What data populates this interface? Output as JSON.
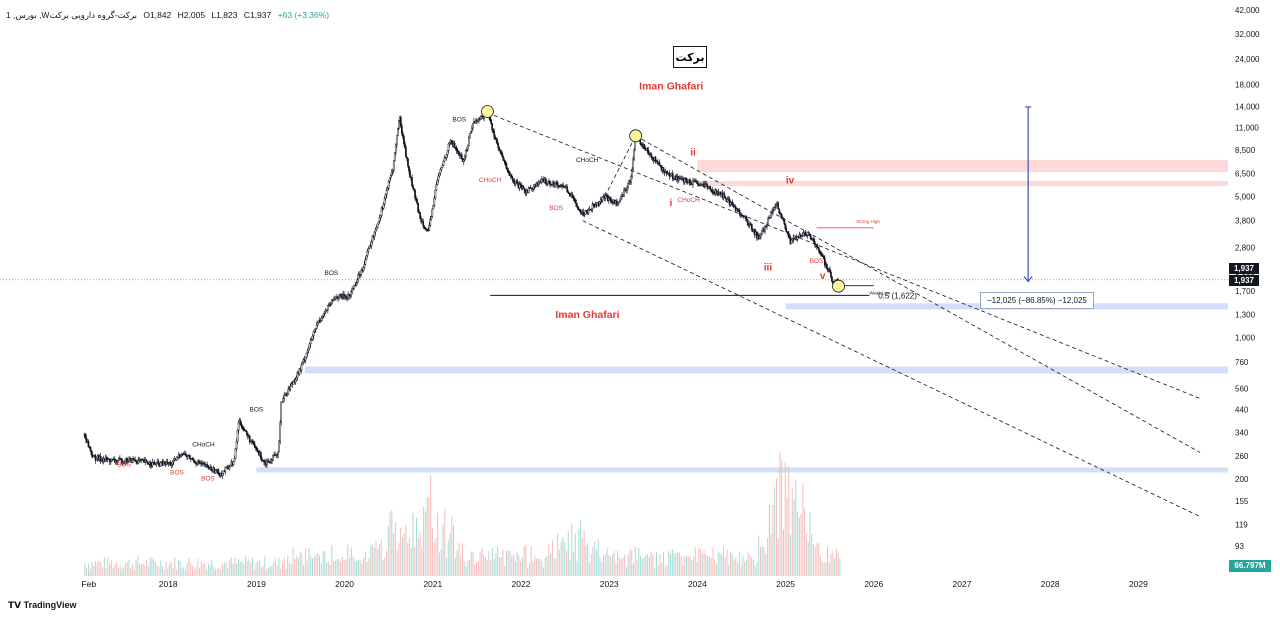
{
  "header": {
    "symbol": "1 ,بورس ,Wبرکت-گروه دارویی برکت",
    "open": "O1,842",
    "high": "H2,005",
    "low": "L1,823",
    "close": "C1,937",
    "change": "+63 (+3.36%)"
  },
  "title": "برکت",
  "watermark": "Iman Ghafari",
  "price_tag_top": "1,937",
  "price_tag_bottom": "1,937",
  "volume_tag": "66.797M",
  "fib_label": "0.5 (1,622)",
  "measure_label": "−12,025 (−86.85%) −12,025",
  "strong_high_label": "Strong High",
  "weak_low_label": "Weak Low",
  "footer_logo": "TradingView",
  "colors": {
    "up": "#26a69a",
    "down": "#ef5350",
    "candle": "#131722",
    "zone_blue": "#c9d9f7",
    "zone_red": "#fbd4d4",
    "bos_red": "#e53935"
  },
  "chart_data": {
    "type": "candlestick",
    "scale": "log",
    "y_ticks": [
      42000,
      32000,
      24000,
      18000,
      14000,
      11000,
      8500,
      6500,
      5000,
      3800,
      2800,
      2000,
      1700,
      1300,
      1000,
      760,
      560,
      440,
      340,
      260,
      200,
      155,
      119,
      93
    ],
    "x_ticks": [
      {
        "label": "Feb",
        "year": 2017.1
      },
      {
        "label": "2018",
        "year": 2018
      },
      {
        "label": "2019",
        "year": 2019
      },
      {
        "label": "2020",
        "year": 2020
      },
      {
        "label": "2021",
        "year": 2021
      },
      {
        "label": "2022",
        "year": 2022
      },
      {
        "label": "2023",
        "year": 2023
      },
      {
        "label": "2024",
        "year": 2024
      },
      {
        "label": "2025",
        "year": 2025
      },
      {
        "label": "2026",
        "year": 2026
      },
      {
        "label": "2027",
        "year": 2027
      },
      {
        "label": "2028",
        "year": 2028
      },
      {
        "label": "2029",
        "year": 2029
      }
    ],
    "price_path": [
      [
        2017.05,
        330
      ],
      [
        2017.15,
        255
      ],
      [
        2017.4,
        245
      ],
      [
        2017.6,
        248
      ],
      [
        2017.85,
        237
      ],
      [
        2018.05,
        238
      ],
      [
        2018.15,
        270
      ],
      [
        2018.3,
        245
      ],
      [
        2018.45,
        228
      ],
      [
        2018.6,
        212
      ],
      [
        2018.75,
        245
      ],
      [
        2018.8,
        390
      ],
      [
        2018.95,
        300
      ],
      [
        2019.1,
        240
      ],
      [
        2019.25,
        265
      ],
      [
        2019.28,
        480
      ],
      [
        2019.5,
        700
      ],
      [
        2019.7,
        1200
      ],
      [
        2019.9,
        1600
      ],
      [
        2020.05,
        1600
      ],
      [
        2020.2,
        2200
      ],
      [
        2020.4,
        4000
      ],
      [
        2020.55,
        7000
      ],
      [
        2020.62,
        12500
      ],
      [
        2020.72,
        7000
      ],
      [
        2020.85,
        4000
      ],
      [
        2020.95,
        3300
      ],
      [
        2021.05,
        6000
      ],
      [
        2021.2,
        9500
      ],
      [
        2021.35,
        7500
      ],
      [
        2021.45,
        11500
      ],
      [
        2021.62,
        13000
      ],
      [
        2021.75,
        8500
      ],
      [
        2021.9,
        6000
      ],
      [
        2022.05,
        5300
      ],
      [
        2022.25,
        6000
      ],
      [
        2022.5,
        5600
      ],
      [
        2022.7,
        4100
      ],
      [
        2022.95,
        5000
      ],
      [
        2023.1,
        4600
      ],
      [
        2023.25,
        6200
      ],
      [
        2023.3,
        10000
      ],
      [
        2023.45,
        8200
      ],
      [
        2023.65,
        6500
      ],
      [
        2023.85,
        6000
      ],
      [
        2024.1,
        5600
      ],
      [
        2024.3,
        5000
      ],
      [
        2024.5,
        4100
      ],
      [
        2024.7,
        3100
      ],
      [
        2024.9,
        4600
      ],
      [
        2025.05,
        3000
      ],
      [
        2025.25,
        3300
      ],
      [
        2025.4,
        2600
      ],
      [
        2025.55,
        1850
      ],
      [
        2025.6,
        1937
      ]
    ],
    "volume": [
      {
        "year": 2020.55,
        "value": 0.55
      },
      {
        "year": 2021.0,
        "value": 0.95
      },
      {
        "year": 2022.6,
        "value": 0.4
      },
      {
        "year": 2025.0,
        "value": 1.0
      },
      {
        "year": 2025.05,
        "value": 0.75
      }
    ],
    "annotations": [
      {
        "text": "BOS",
        "year": 2017.5,
        "price": 230,
        "color": "red"
      },
      {
        "text": "BOS",
        "year": 2018.1,
        "price": 210,
        "color": "red"
      },
      {
        "text": "BOS",
        "year": 2018.45,
        "price": 196,
        "color": "red"
      },
      {
        "text": "CHoCH",
        "year": 2018.4,
        "price": 290,
        "color": "black"
      },
      {
        "text": "BOS",
        "year": 2019.0,
        "price": 430,
        "color": "black"
      },
      {
        "text": "BOS",
        "year": 2019.85,
        "price": 2050,
        "color": "black"
      },
      {
        "text": "BOS",
        "year": 2021.3,
        "price": 11800,
        "color": "black"
      },
      {
        "text": "CHoCH",
        "year": 2021.65,
        "price": 5900,
        "color": "red"
      },
      {
        "text": "BOS",
        "year": 2022.4,
        "price": 4300,
        "color": "red"
      },
      {
        "text": "CHoCH",
        "year": 2022.75,
        "price": 7400,
        "color": "black"
      },
      {
        "text": "CHoCH",
        "year": 2023.9,
        "price": 4700,
        "color": "red"
      },
      {
        "text": "BOS",
        "year": 2025.35,
        "price": 2350,
        "color": "red"
      },
      {
        "text": "i",
        "year": 2023.7,
        "price": 4500,
        "color": "red"
      },
      {
        "text": "ii",
        "year": 2023.95,
        "price": 8000,
        "color": "red"
      },
      {
        "text": "iii",
        "year": 2024.8,
        "price": 2150,
        "color": "red"
      },
      {
        "text": "iv",
        "year": 2025.05,
        "price": 5800,
        "color": "red"
      },
      {
        "text": "v",
        "year": 2025.42,
        "price": 1950,
        "color": "red"
      }
    ],
    "zones": [
      {
        "color": "blue",
        "from": 2025.0,
        "high": 1480,
        "low": 1380
      },
      {
        "color": "blue",
        "from": 2019.55,
        "high": 720,
        "low": 665
      },
      {
        "color": "blue",
        "from": 2019.0,
        "high": 228,
        "low": 215
      },
      {
        "color": "red",
        "from": 2024.0,
        "high": 7600,
        "low": 6600
      },
      {
        "color": "red",
        "from": 2024.0,
        "high": 5980,
        "low": 5640
      }
    ]
  }
}
